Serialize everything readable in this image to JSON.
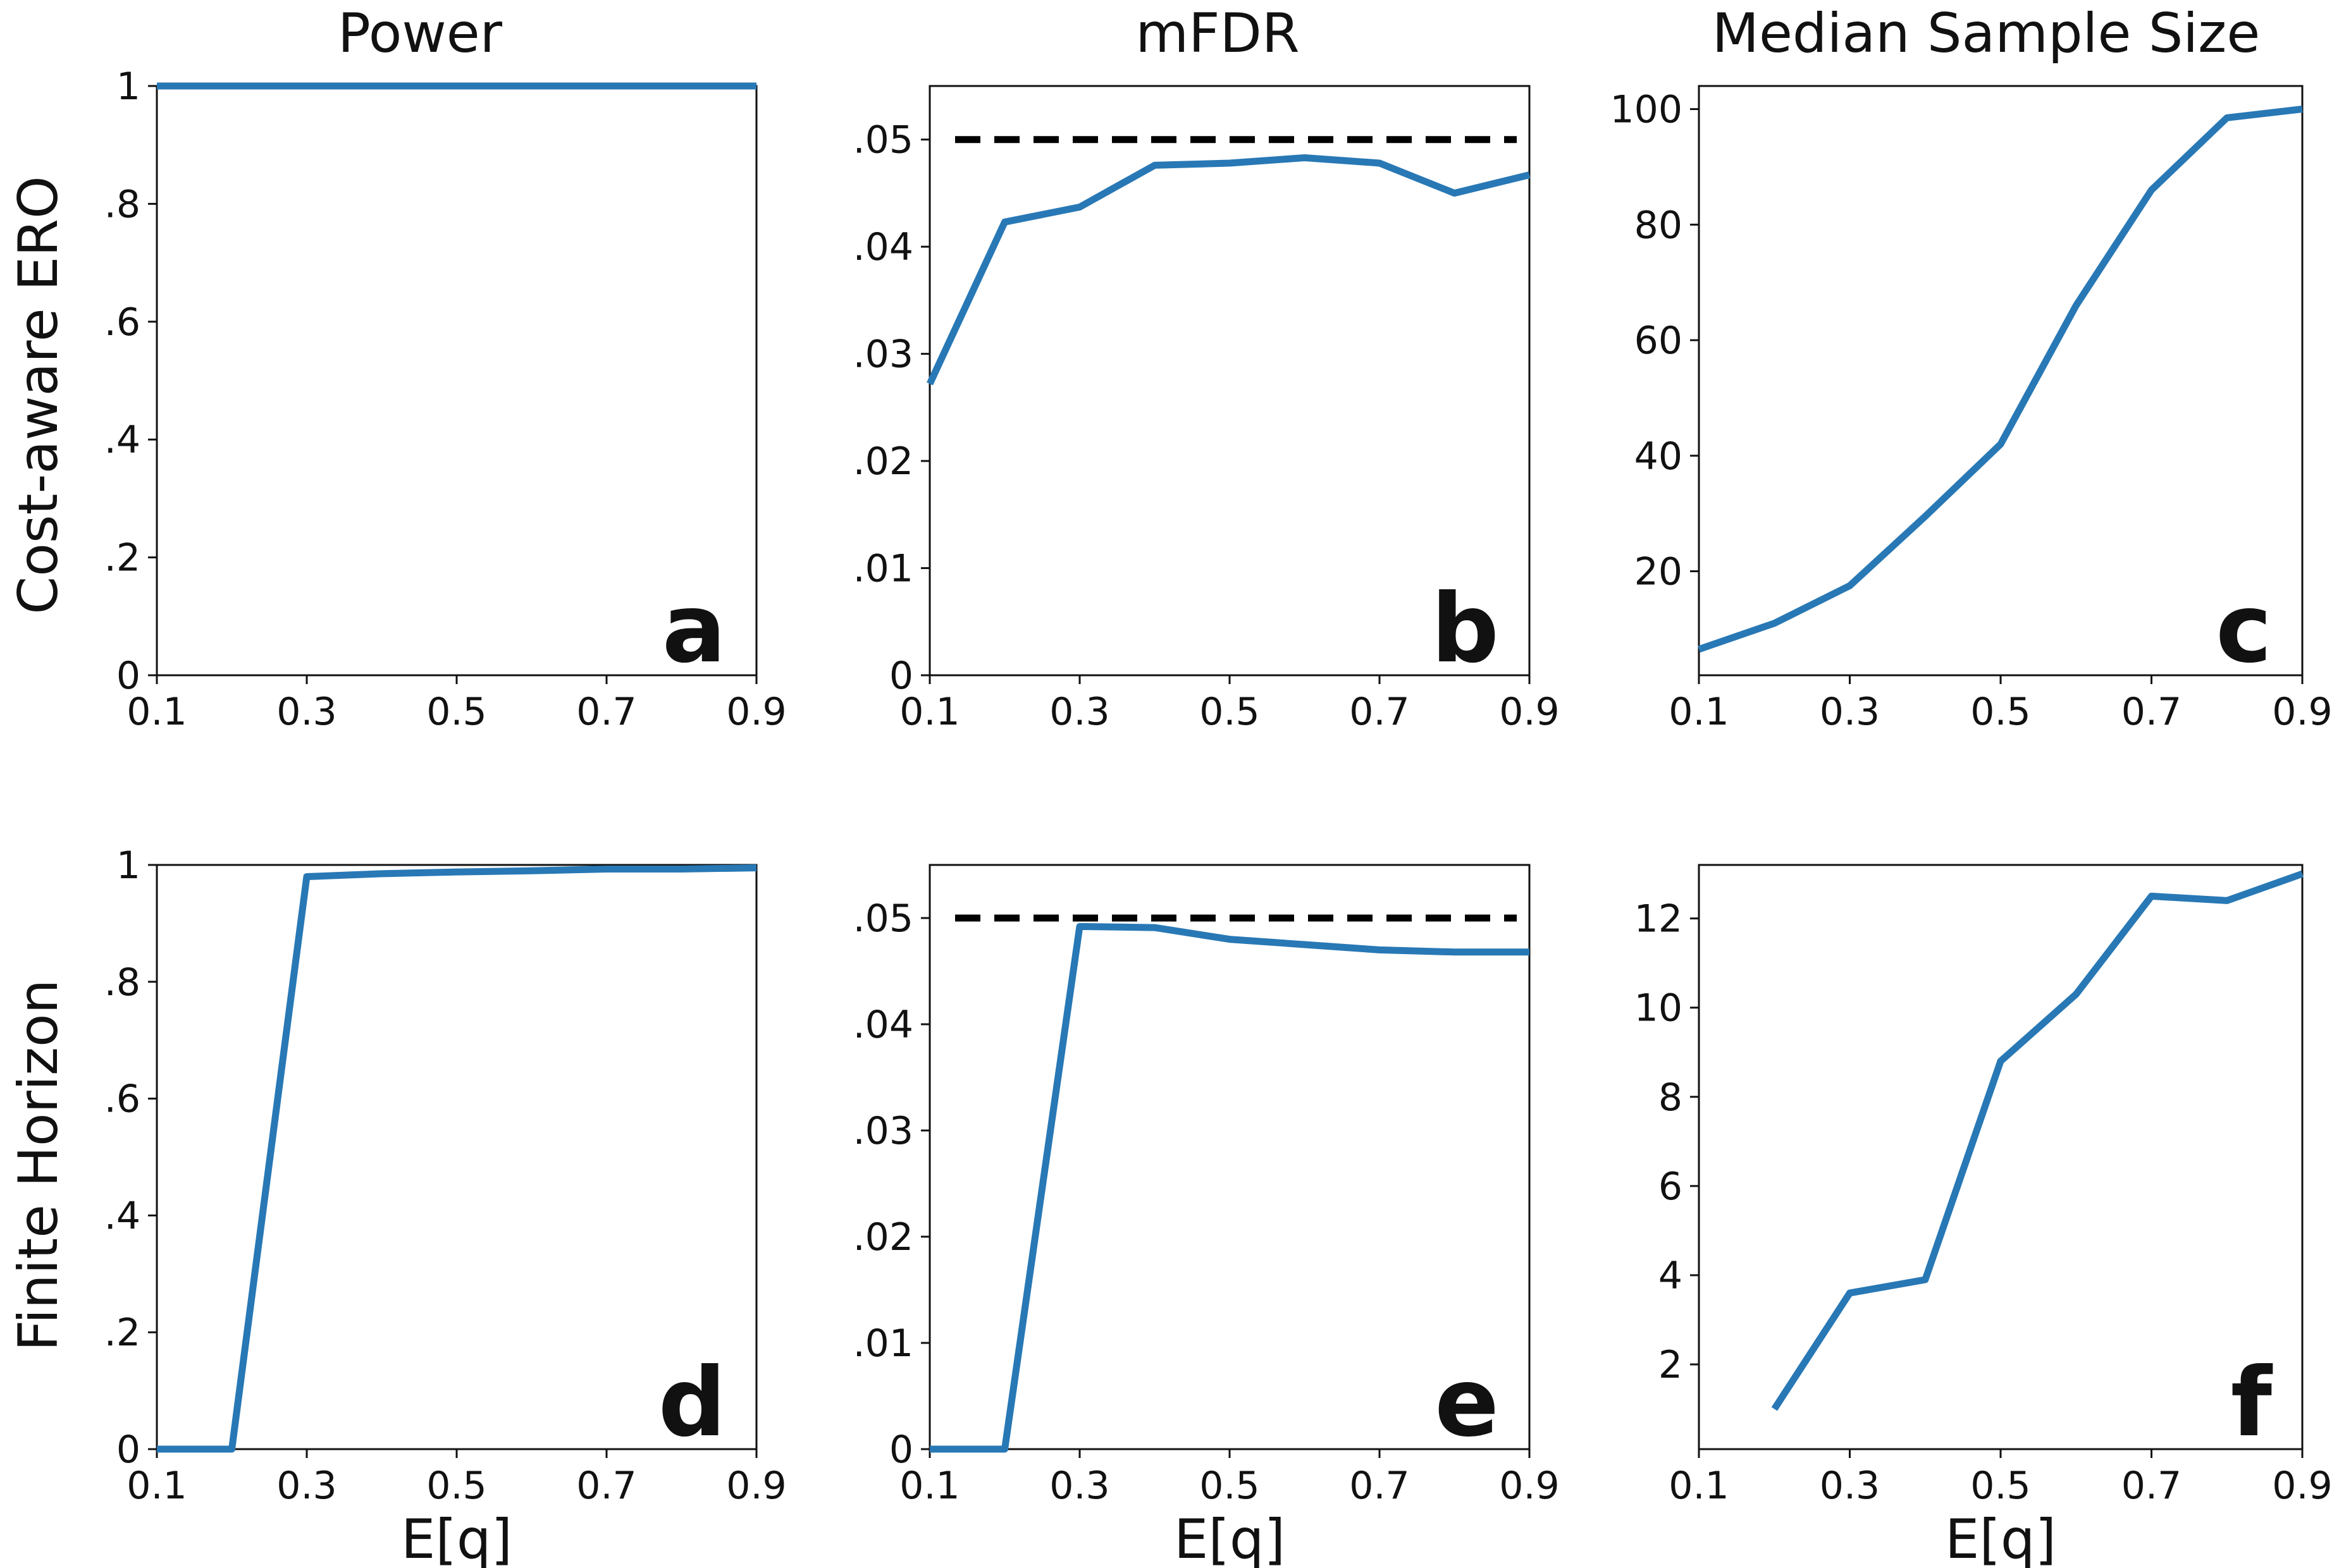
{
  "column_titles": [
    "Power",
    "mFDR",
    "Median Sample Size"
  ],
  "row_labels": [
    "Cost-aware ERO",
    "Finite Horizon"
  ],
  "colors": {
    "series": "#2878b5",
    "reference": "#000000"
  },
  "chart_data": [
    {
      "type": "line",
      "letter": "a",
      "row": 0,
      "col": 0,
      "xlabel": "",
      "ylabel": "",
      "ylim": [
        0,
        1
      ],
      "xlim": [
        0.1,
        0.9
      ],
      "xticks": [
        0.1,
        0.3,
        0.5,
        0.7,
        0.9
      ],
      "xtick_labels": [
        "0.1",
        "0.3",
        "0.5",
        "0.7",
        "0.9"
      ],
      "yticks": [
        0,
        0.2,
        0.4,
        0.6,
        0.8,
        1
      ],
      "ytick_labels": [
        "0",
        ".2",
        ".4",
        ".6",
        ".8",
        "1"
      ],
      "series": [
        {
          "x": [
            0.1,
            0.2,
            0.3,
            0.4,
            0.5,
            0.6,
            0.7,
            0.8,
            0.9
          ],
          "y": [
            1,
            1,
            1,
            1,
            1,
            1,
            1,
            1,
            1
          ]
        }
      ]
    },
    {
      "type": "line",
      "letter": "b",
      "row": 0,
      "col": 1,
      "xlabel": "",
      "ylabel": "",
      "ylim": [
        0,
        0.055
      ],
      "xlim": [
        0.1,
        0.9
      ],
      "xticks": [
        0.1,
        0.3,
        0.5,
        0.7,
        0.9
      ],
      "xtick_labels": [
        "0.1",
        "0.3",
        "0.5",
        "0.7",
        "0.9"
      ],
      "yticks": [
        0,
        0.01,
        0.02,
        0.03,
        0.04,
        0.05
      ],
      "ytick_labels": [
        "0",
        ".01",
        ".02",
        ".03",
        ".04",
        ".05"
      ],
      "reference_line": 0.05,
      "series": [
        {
          "x": [
            0.1,
            0.2,
            0.3,
            0.4,
            0.5,
            0.6,
            0.7,
            0.8,
            0.9
          ],
          "y": [
            0.0272,
            0.0423,
            0.0437,
            0.0476,
            0.0478,
            0.0483,
            0.0478,
            0.045,
            0.0467
          ]
        }
      ]
    },
    {
      "type": "line",
      "letter": "c",
      "row": 0,
      "col": 2,
      "xlabel": "",
      "ylabel": "",
      "ylim": [
        2,
        104
      ],
      "xlim": [
        0.1,
        0.9
      ],
      "xticks": [
        0.1,
        0.3,
        0.5,
        0.7,
        0.9
      ],
      "xtick_labels": [
        "0.1",
        "0.3",
        "0.5",
        "0.7",
        "0.9"
      ],
      "yticks": [
        20,
        40,
        60,
        80,
        100
      ],
      "ytick_labels": [
        "20",
        "40",
        "60",
        "80",
        "100"
      ],
      "series": [
        {
          "x": [
            0.1,
            0.2,
            0.3,
            0.4,
            0.5,
            0.6,
            0.7,
            0.8,
            0.9
          ],
          "y": [
            6.5,
            11,
            17.5,
            29.5,
            42,
            66,
            86,
            98.5,
            100
          ]
        }
      ]
    },
    {
      "type": "line",
      "letter": "d",
      "row": 1,
      "col": 0,
      "xlabel": "E[q]",
      "ylabel": "",
      "ylim": [
        0,
        1
      ],
      "xlim": [
        0.1,
        0.9
      ],
      "xticks": [
        0.1,
        0.3,
        0.5,
        0.7,
        0.9
      ],
      "xtick_labels": [
        "0.1",
        "0.3",
        "0.5",
        "0.7",
        "0.9"
      ],
      "yticks": [
        0,
        0.2,
        0.4,
        0.6,
        0.8,
        1
      ],
      "ytick_labels": [
        "0",
        ".2",
        ".4",
        ".6",
        ".8",
        "1"
      ],
      "series": [
        {
          "x": [
            0.1,
            0.2,
            0.3,
            0.4,
            0.5,
            0.6,
            0.7,
            0.8,
            0.9
          ],
          "y": [
            0,
            0,
            0.98,
            0.985,
            0.988,
            0.99,
            0.993,
            0.993,
            0.995
          ]
        }
      ]
    },
    {
      "type": "line",
      "letter": "e",
      "row": 1,
      "col": 1,
      "xlabel": "E[q]",
      "ylabel": "",
      "ylim": [
        0,
        0.055
      ],
      "xlim": [
        0.1,
        0.9
      ],
      "xticks": [
        0.1,
        0.3,
        0.5,
        0.7,
        0.9
      ],
      "xtick_labels": [
        "0.1",
        "0.3",
        "0.5",
        "0.7",
        "0.9"
      ],
      "yticks": [
        0,
        0.01,
        0.02,
        0.03,
        0.04,
        0.05
      ],
      "ytick_labels": [
        "0",
        ".01",
        ".02",
        ".03",
        ".04",
        ".05"
      ],
      "reference_line": 0.05,
      "series": [
        {
          "x": [
            0.1,
            0.2,
            0.3,
            0.4,
            0.5,
            0.6,
            0.7,
            0.8,
            0.9
          ],
          "y": [
            0,
            0,
            0.0492,
            0.0491,
            0.048,
            0.0475,
            0.047,
            0.0468,
            0.0468
          ]
        }
      ]
    },
    {
      "type": "line",
      "letter": "f",
      "row": 1,
      "col": 2,
      "xlabel": "E[q]",
      "ylabel": "",
      "ylim": [
        0.1,
        13.2
      ],
      "xlim": [
        0.1,
        0.9
      ],
      "xticks": [
        0.1,
        0.3,
        0.5,
        0.7,
        0.9
      ],
      "xtick_labels": [
        "0.1",
        "0.3",
        "0.5",
        "0.7",
        "0.9"
      ],
      "yticks": [
        2,
        4,
        6,
        8,
        10,
        12
      ],
      "ytick_labels": [
        "2",
        "4",
        "6",
        "8",
        "10",
        "12"
      ],
      "series": [
        {
          "x": [
            0.2,
            0.3,
            0.4,
            0.5,
            0.6,
            0.7,
            0.8,
            0.9
          ],
          "y": [
            1,
            3.6,
            3.9,
            8.8,
            10.3,
            12.5,
            12.4,
            13
          ]
        }
      ]
    }
  ]
}
